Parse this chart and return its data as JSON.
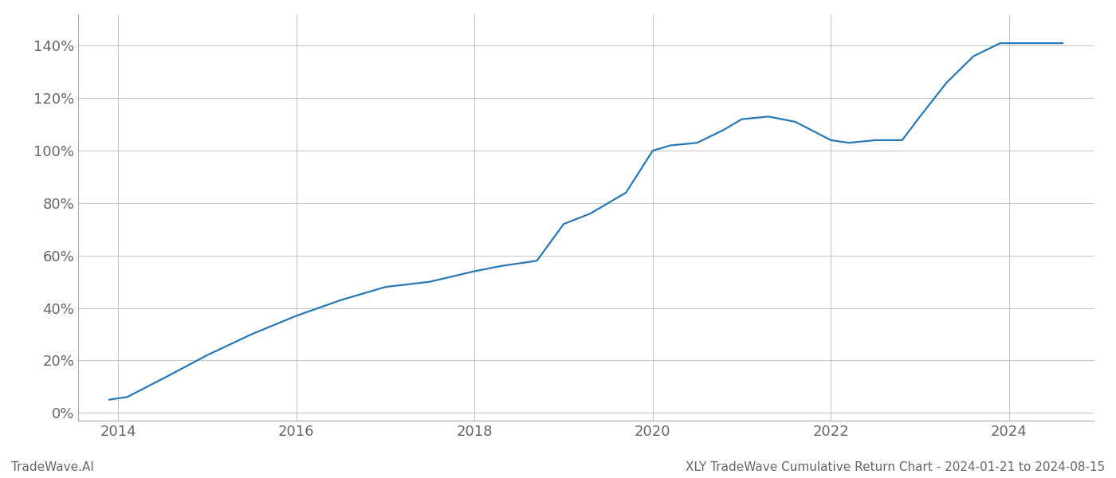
{
  "x_years": [
    2013.9,
    2014.1,
    2014.5,
    2015.0,
    2015.5,
    2016.0,
    2016.5,
    2017.0,
    2017.5,
    2018.0,
    2018.3,
    2018.7,
    2019.0,
    2019.3,
    2019.7,
    2020.0,
    2020.2,
    2020.5,
    2020.8,
    2021.0,
    2021.3,
    2021.6,
    2022.0,
    2022.2,
    2022.5,
    2022.8,
    2023.0,
    2023.3,
    2023.6,
    2023.9,
    2024.1,
    2024.6
  ],
  "y_values": [
    5,
    6,
    13,
    22,
    30,
    37,
    43,
    48,
    50,
    54,
    56,
    58,
    72,
    76,
    84,
    100,
    102,
    103,
    108,
    112,
    113,
    111,
    104,
    103,
    104,
    104,
    113,
    126,
    136,
    141,
    141,
    141
  ],
  "line_color": "#2878b5",
  "line_width": 1.6,
  "background_color": "#ffffff",
  "grid_color": "#c8c8c8",
  "ylabel_values": [
    0,
    20,
    40,
    60,
    80,
    100,
    120,
    140
  ],
  "xlim": [
    2013.55,
    2024.95
  ],
  "ylim": [
    -3,
    152
  ],
  "x_ticks": [
    2014,
    2016,
    2018,
    2020,
    2022,
    2024
  ],
  "tick_color": "#666666",
  "footer_left": "TradeWave.AI",
  "footer_right": "XLY TradeWave Cumulative Return Chart - 2024-01-21 to 2024-08-15",
  "footer_fontsize": 11,
  "tick_fontsize": 13,
  "spine_color": "#aaaaaa",
  "left_spine_color": "#aaaaaa"
}
